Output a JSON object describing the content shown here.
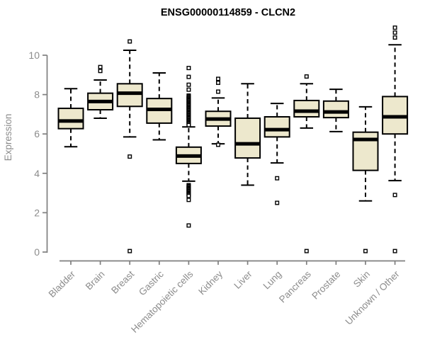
{
  "title": "ENSG00000114859 - CLCN2",
  "y_axis": {
    "label": "Expression",
    "ticks": [
      0,
      2,
      4,
      6,
      8,
      10
    ]
  },
  "colors": {
    "background": "#ffffff",
    "box_fill": "#EDE8CD",
    "box_stroke": "#000000",
    "axis": "#7F7F7F",
    "text": "#8C8C8C",
    "title_text": "#000000"
  },
  "chart_data": {
    "type": "boxplot",
    "title": "ENSG00000114859 - CLCN2",
    "xlabel": "",
    "ylabel": "Expression",
    "ylim": [
      0,
      11.7
    ],
    "yticks": [
      0,
      2,
      4,
      6,
      8,
      10
    ],
    "grid": false,
    "legend": "none",
    "categories": [
      "Bladder",
      "Brain",
      "Breast",
      "Gastric",
      "Hematopoietic cells",
      "Kidney",
      "Liver",
      "Lung",
      "Pancreas",
      "Prostate",
      "Skin",
      "Unknown / Other"
    ],
    "boxes": [
      {
        "label": "Bladder",
        "whisker_low": 5.35,
        "q1": 6.27,
        "median": 6.66,
        "q3": 7.3,
        "whisker_high": 8.3,
        "outliers": []
      },
      {
        "label": "Brain",
        "whisker_low": 6.8,
        "q1": 7.23,
        "median": 7.65,
        "q3": 8.07,
        "whisker_high": 8.74,
        "outliers": [
          9.2,
          9.4
        ]
      },
      {
        "label": "Breast",
        "whisker_low": 5.85,
        "q1": 7.4,
        "median": 8.07,
        "q3": 8.55,
        "whisker_high": 10.25,
        "outliers": [
          10.7,
          4.85,
          0.05
        ]
      },
      {
        "label": "Gastric",
        "whisker_low": 5.7,
        "q1": 6.55,
        "median": 7.25,
        "q3": 7.8,
        "whisker_high": 9.1,
        "outliers": []
      },
      {
        "label": "Hematopoietic cells",
        "whisker_low": 3.6,
        "q1": 4.5,
        "median": 4.88,
        "q3": 5.33,
        "whisker_high": 6.36,
        "outliers": [
          9.35,
          8.9,
          8.5,
          8.25,
          7.95,
          7.9,
          7.85,
          7.8,
          7.75,
          7.7,
          7.65,
          7.6,
          7.55,
          7.5,
          7.45,
          7.4,
          7.35,
          7.3,
          7.25,
          7.2,
          7.15,
          7.1,
          7.05,
          7.0,
          6.95,
          6.9,
          6.85,
          6.8,
          6.75,
          6.7,
          6.65,
          6.6,
          6.55,
          6.5,
          6.45,
          3.4,
          3.35,
          3.3,
          3.25,
          3.2,
          3.15,
          3.1,
          3.05,
          3.0,
          2.95,
          2.9,
          2.85,
          2.65,
          1.35
        ]
      },
      {
        "label": "Kidney",
        "whisker_low": 5.5,
        "q1": 6.4,
        "median": 6.76,
        "q3": 7.15,
        "whisker_high": 7.83,
        "outliers": [
          8.8,
          8.6,
          8.15,
          5.45
        ]
      },
      {
        "label": "Liver",
        "whisker_low": 3.4,
        "q1": 4.78,
        "median": 5.5,
        "q3": 6.8,
        "whisker_high": 8.55,
        "outliers": []
      },
      {
        "label": "Lung",
        "whisker_low": 4.53,
        "q1": 5.85,
        "median": 6.22,
        "q3": 6.87,
        "whisker_high": 7.55,
        "outliers": [
          3.75,
          2.5
        ]
      },
      {
        "label": "Pancreas",
        "whisker_low": 6.3,
        "q1": 6.87,
        "median": 7.16,
        "q3": 7.7,
        "whisker_high": 8.55,
        "outliers": [
          8.92,
          0.05
        ]
      },
      {
        "label": "Prostate",
        "whisker_low": 6.12,
        "q1": 6.83,
        "median": 7.12,
        "q3": 7.67,
        "whisker_high": 8.27,
        "outliers": []
      },
      {
        "label": "Skin",
        "whisker_low": 2.6,
        "q1": 4.15,
        "median": 5.72,
        "q3": 6.09,
        "whisker_high": 7.38,
        "outliers": [
          0.05
        ]
      },
      {
        "label": "Unknown / Other",
        "whisker_low": 3.63,
        "q1": 6.0,
        "median": 6.87,
        "q3": 7.9,
        "whisker_high": 10.53,
        "outliers": [
          11.4,
          11.15,
          10.9,
          2.9,
          0.05
        ]
      }
    ]
  }
}
